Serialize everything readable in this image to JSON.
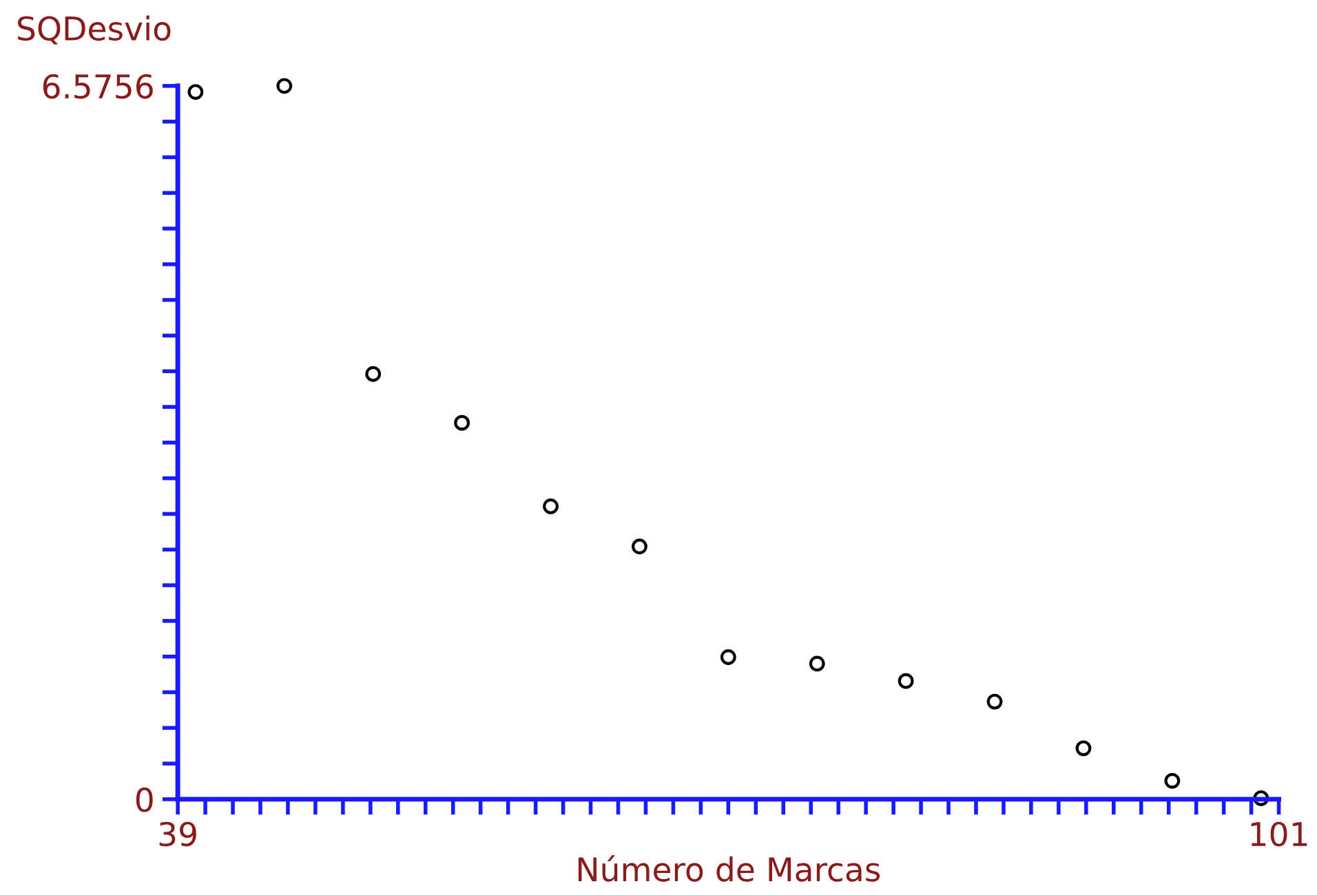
{
  "chart_data": {
    "type": "scatter",
    "xlabel": "Número de Marcas",
    "ylabel": "SQDesvio",
    "x": [
      40,
      45,
      50,
      55,
      60,
      65,
      70,
      75,
      80,
      85,
      90,
      95,
      100
    ],
    "series": [
      {
        "color": "#000000",
        "values": [
          6.52,
          6.5756,
          3.92,
          3.47,
          2.7,
          2.33,
          1.31,
          1.25,
          1.09,
          0.9,
          0.47,
          0.17,
          0.01
        ]
      }
    ],
    "marker": "circle",
    "xlim": [
      39,
      101
    ],
    "ylim": [
      0,
      6.5756
    ],
    "xticks": [
      39,
      {
        "value": 40.55,
        "label": null
      },
      {
        "value": 42.1,
        "label": null
      },
      {
        "value": 43.65,
        "label": null
      },
      {
        "value": 45.2,
        "label": null
      },
      {
        "value": 46.75,
        "label": null
      },
      {
        "value": 48.3,
        "label": null
      },
      {
        "value": 49.85,
        "label": null
      },
      {
        "value": 51.4,
        "label": null
      },
      {
        "value": 52.95,
        "label": null
      },
      {
        "value": 54.5,
        "label": null
      },
      {
        "value": 56.05,
        "label": null
      },
      {
        "value": 57.6,
        "label": null
      },
      {
        "value": 59.15,
        "label": null
      },
      {
        "value": 60.7,
        "label": null
      },
      {
        "value": 62.25,
        "label": null
      },
      {
        "value": 63.8,
        "label": null
      },
      {
        "value": 65.35,
        "label": null
      },
      {
        "value": 66.9,
        "label": null
      },
      {
        "value": 68.45,
        "label": null
      },
      {
        "value": 70,
        "label": null
      },
      {
        "value": 71.55,
        "label": null
      },
      {
        "value": 73.1,
        "label": null
      },
      {
        "value": 74.65,
        "label": null
      },
      {
        "value": 76.2,
        "label": null
      },
      {
        "value": 77.75,
        "label": null
      },
      {
        "value": 79.3,
        "label": null
      },
      {
        "value": 80.85,
        "label": null
      },
      {
        "value": 82.4,
        "label": null
      },
      {
        "value": 83.95,
        "label": null
      },
      {
        "value": 85.5,
        "label": null
      },
      {
        "value": 87.05,
        "label": null
      },
      {
        "value": 88.6,
        "label": null
      },
      {
        "value": 90.15,
        "label": null
      },
      {
        "value": 91.7,
        "label": null
      },
      {
        "value": 93.25,
        "label": null
      },
      {
        "value": 94.8,
        "label": null
      },
      {
        "value": 96.35,
        "label": null
      },
      {
        "value": 97.9,
        "label": null
      },
      {
        "value": 99.45,
        "label": null
      },
      101
    ],
    "yticks": [
      0,
      {
        "value": 0.32878,
        "label": null
      },
      {
        "value": 0.65756,
        "label": null
      },
      {
        "value": 0.98634,
        "label": null
      },
      {
        "value": 1.31512,
        "label": null
      },
      {
        "value": 1.6439,
        "label": null
      },
      {
        "value": 1.97268,
        "label": null
      },
      {
        "value": 2.30146,
        "label": null
      },
      {
        "value": 2.63024,
        "label": null
      },
      {
        "value": 2.95902,
        "label": null
      },
      {
        "value": 3.2878,
        "label": null
      },
      {
        "value": 3.61658,
        "label": null
      },
      {
        "value": 3.94536,
        "label": null
      },
      {
        "value": 4.27414,
        "label": null
      },
      {
        "value": 4.60292,
        "label": null
      },
      {
        "value": 4.9317,
        "label": null
      },
      {
        "value": 5.26048,
        "label": null
      },
      {
        "value": 5.58926,
        "label": null
      },
      {
        "value": 5.91804,
        "label": null
      },
      {
        "value": 6.24682,
        "label": null
      },
      6.5756
    ],
    "grid": false,
    "legend": false
  }
}
